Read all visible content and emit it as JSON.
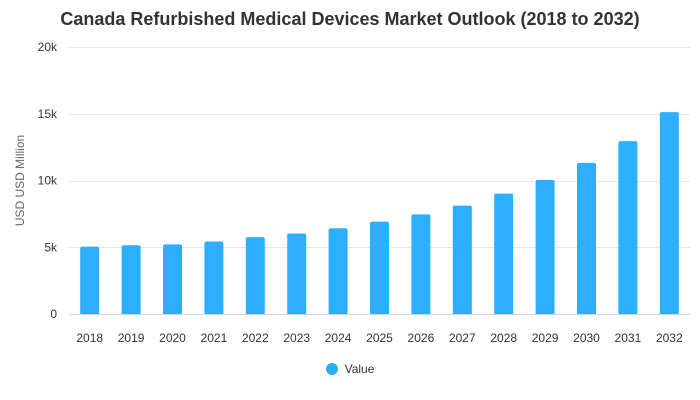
{
  "chart_data": {
    "type": "bar",
    "title": "Canada Refurbished Medical Devices Market Outlook (2018 to 2032)",
    "xlabel": "",
    "ylabel": "USD USD Million",
    "categories": [
      "2018",
      "2019",
      "2020",
      "2021",
      "2022",
      "2023",
      "2024",
      "2025",
      "2026",
      "2027",
      "2028",
      "2029",
      "2030",
      "2031",
      "2032"
    ],
    "series": [
      {
        "name": "Value",
        "values": [
          5050,
          5150,
          5220,
          5430,
          5760,
          6030,
          6420,
          6920,
          7460,
          8120,
          9020,
          10050,
          11320,
          12950,
          15120
        ]
      }
    ],
    "ylim": [
      0,
      20000
    ],
    "yticks": [
      0,
      5000,
      10000,
      15000,
      20000
    ],
    "ytick_labels": [
      "0",
      "5k",
      "10k",
      "15k",
      "20k"
    ],
    "grid": true,
    "legend_position": "bottom",
    "colors": {
      "bar": "#2caffe",
      "grid": "#e6e6e6",
      "baseline": "#ccd6eb"
    }
  }
}
